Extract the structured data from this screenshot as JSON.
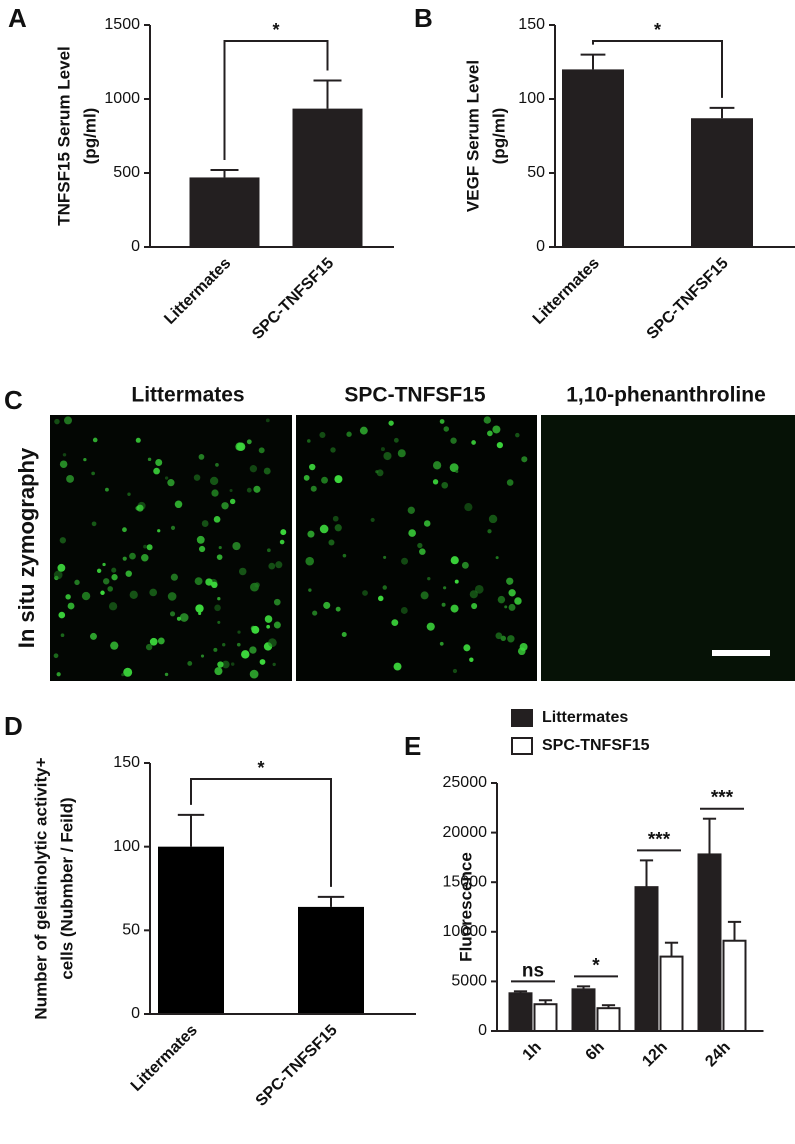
{
  "panel_labels": [
    "A",
    "B",
    "C",
    "D",
    "E"
  ],
  "zymography": {
    "ylabel": "In situ zymography",
    "columns": [
      "Littermates",
      "SPC-TNFSF15",
      "1,10-phenanthroline"
    ]
  },
  "chart_data": [
    {
      "type": "bar",
      "ylabel": [
        "TNFSF15 Serum Level",
        "(pg/ml)"
      ],
      "categories": [
        "Littermates",
        "SPC-TNFSF15"
      ],
      "values": [
        470,
        935
      ],
      "errors": [
        50,
        190
      ],
      "color": "#231f20",
      "ylim": [
        0,
        1500
      ],
      "yticks": [
        0,
        500,
        1000,
        1500
      ],
      "significance": "*"
    },
    {
      "type": "bar",
      "ylabel": [
        "VEGF Serum Level",
        "(pg/ml)"
      ],
      "categories": [
        "Littermates",
        "SPC-TNFSF15"
      ],
      "values": [
        120,
        87
      ],
      "errors": [
        10,
        7
      ],
      "color": "#231f20",
      "ylim": [
        0,
        150
      ],
      "yticks": [
        0,
        50,
        100,
        150
      ],
      "significance": "*"
    },
    {
      "type": "bar",
      "ylabel": [
        "Number of gelatinolytic activity+",
        "cells (Nubmber / Feild)"
      ],
      "categories": [
        "Littermates",
        "SPC-TNFSF15"
      ],
      "values": [
        100,
        64
      ],
      "errors": [
        19,
        6
      ],
      "color": "#000000",
      "ylim": [
        0,
        150
      ],
      "yticks": [
        0,
        50,
        100,
        150
      ],
      "significance": "*"
    },
    {
      "type": "grouped_bar",
      "ylabel": [
        "Fluorescence"
      ],
      "categories": [
        "1h",
        "6h",
        "12h",
        "24h"
      ],
      "series": [
        {
          "name": "Littermates",
          "color": "#231f20",
          "values": [
            3800,
            4200,
            14500,
            17800
          ],
          "errors": [
            200,
            300,
            2700,
            3600
          ]
        },
        {
          "name": "SPC-TNFSF15",
          "color": "#ffffff",
          "values": [
            2700,
            2300,
            7500,
            9100
          ],
          "errors": [
            400,
            300,
            1400,
            1900
          ]
        }
      ],
      "ylim": [
        0,
        25000
      ],
      "yticks": [
        0,
        5000,
        10000,
        15000,
        20000,
        25000
      ],
      "annotations": [
        "ns",
        "*",
        "***",
        "***"
      ]
    }
  ]
}
